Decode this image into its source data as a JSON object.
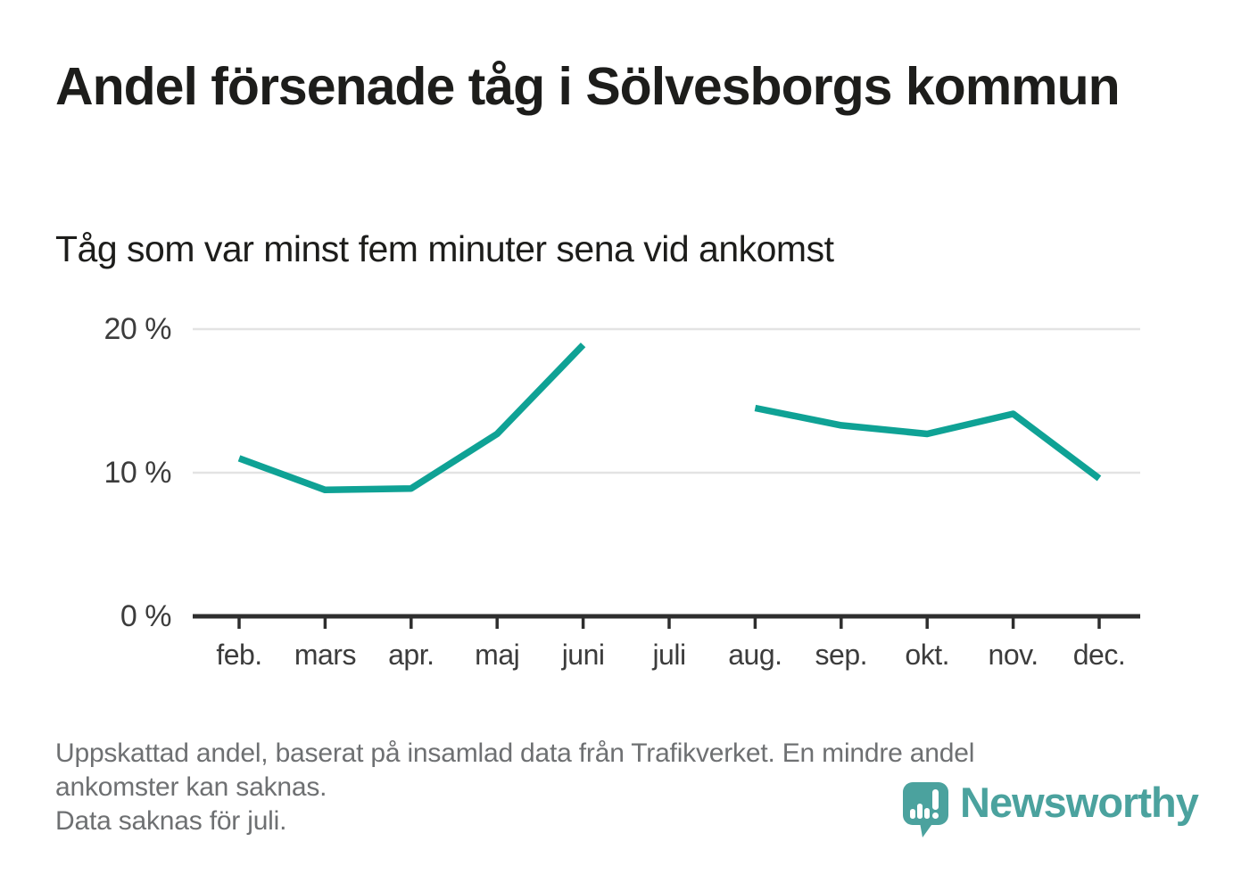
{
  "header": {
    "title": "Andel försenade tåg i Sölvesborgs kommun",
    "subtitle": "Tåg som var minst fem minuter sena vid ankomst"
  },
  "chart_data": {
    "type": "line",
    "title": "Andel försenade tåg i Sölvesborgs kommun",
    "subtitle": "Tåg som var minst fem minuter sena vid ankomst",
    "categories": [
      "feb.",
      "mars",
      "apr.",
      "maj",
      "juni",
      "juli",
      "aug.",
      "sep.",
      "okt.",
      "nov.",
      "dec."
    ],
    "series": [
      {
        "name": "Andel försenade tåg (%)",
        "values": [
          11.0,
          8.8,
          8.9,
          12.7,
          18.9,
          null,
          14.5,
          13.3,
          12.7,
          14.1,
          9.6
        ]
      }
    ],
    "unit": "%",
    "ylim": [
      0,
      21.5
    ],
    "y_ticks": [
      {
        "value": 0,
        "label": "0 %"
      },
      {
        "value": 10,
        "label": "10 %"
      },
      {
        "value": 20,
        "label": "20 %"
      }
    ],
    "grid": "horizontal",
    "legend": "none",
    "line_color": "#0fa295",
    "axis_color": "#2e2e2e",
    "grid_color": "#e3e3e3",
    "missing_data_months": [
      "juli"
    ]
  },
  "footer": {
    "lines": [
      "Uppskattad andel, baserat på insamlad data från Trafikverket. En mindre andel",
      "ankomster kan saknas.",
      "Data saknas för juli."
    ]
  },
  "branding": {
    "wordmark": "Newsworthy",
    "logo_icon": "newsworthy-bubble-chart-icon",
    "brand_color": "#4ba29e"
  }
}
